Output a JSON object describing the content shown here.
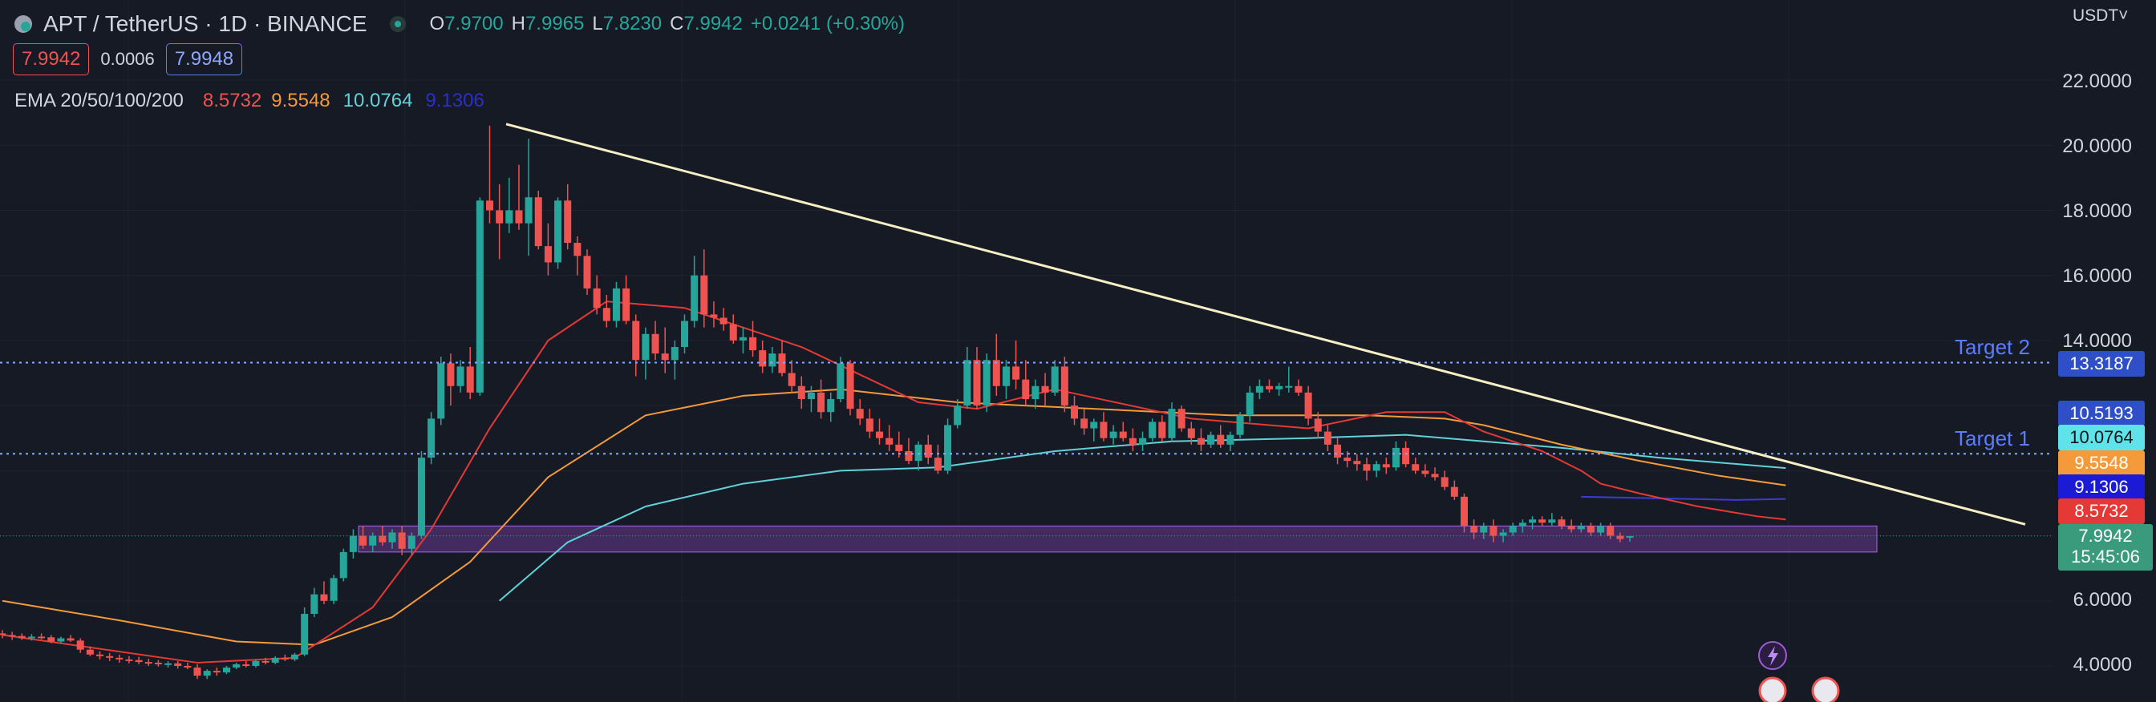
{
  "header": {
    "symbol": "APT / TetherUS · 1D · BINANCE",
    "o_label": "O",
    "o": "7.9700",
    "h_label": "H",
    "h": "7.9965",
    "l_label": "L",
    "l": "7.8230",
    "c_label": "C",
    "c": "7.9942",
    "change": "+0.0241 (+0.30%)"
  },
  "prices": {
    "sell": "7.9942",
    "spread": "0.0006",
    "buy": "7.9948"
  },
  "ema": {
    "label": "EMA 20/50/100/200",
    "ema20": "8.5732",
    "ema50": "9.5548",
    "ema100": "10.0764",
    "ema200": "9.1306"
  },
  "axis": {
    "currency": "USDT",
    "ticks": [
      "22.0000",
      "20.0000",
      "18.0000",
      "16.0000",
      "14.0000",
      "6.0000",
      "4.0000"
    ]
  },
  "price_tags": {
    "target2_level": "13.3187",
    "extra_level": "10.5193",
    "ema100": "10.0764",
    "ema50": "9.5548",
    "ema200": "9.1306",
    "ema20": "8.5732",
    "last": "7.9942",
    "countdown": "15:45:06"
  },
  "targets": {
    "target2": "Target 2",
    "target1": "Target 1"
  },
  "colors": {
    "background": "#161a25",
    "up": "#26a69a",
    "down": "#ef5350",
    "ema20": "#e53935",
    "ema50": "#f59a3b",
    "ema100": "#5fd3d8",
    "ema200": "#3b3bd6",
    "trendline": "#f5efc3",
    "target_line": "#8fa6ff",
    "zone": "#7b3fa8"
  },
  "chart_data": {
    "type": "candlestick",
    "ylim": [
      3.4,
      23.2
    ],
    "grid": true,
    "candles": [
      [
        5.0,
        5.1,
        4.85,
        4.95
      ],
      [
        4.95,
        5.05,
        4.8,
        4.92
      ],
      [
        4.92,
        5.0,
        4.8,
        4.85
      ],
      [
        4.85,
        4.98,
        4.78,
        4.9
      ],
      [
        4.9,
        5.0,
        4.82,
        4.88
      ],
      [
        4.88,
        4.95,
        4.7,
        4.75
      ],
      [
        4.75,
        4.9,
        4.7,
        4.85
      ],
      [
        4.85,
        4.95,
        4.74,
        4.78
      ],
      [
        4.78,
        4.85,
        4.4,
        4.5
      ],
      [
        4.5,
        4.6,
        4.3,
        4.35
      ],
      [
        4.35,
        4.45,
        4.2,
        4.3
      ],
      [
        4.3,
        4.4,
        4.15,
        4.25
      ],
      [
        4.25,
        4.35,
        4.1,
        4.2
      ],
      [
        4.2,
        4.3,
        4.08,
        4.18
      ],
      [
        4.18,
        4.28,
        4.05,
        4.12
      ],
      [
        4.12,
        4.22,
        4.0,
        4.1
      ],
      [
        4.1,
        4.18,
        3.98,
        4.05
      ],
      [
        4.05,
        4.15,
        3.95,
        4.08
      ],
      [
        4.08,
        4.15,
        3.92,
        4.0
      ],
      [
        4.0,
        4.1,
        3.9,
        3.95
      ],
      [
        3.95,
        4.05,
        3.6,
        3.7
      ],
      [
        3.7,
        3.9,
        3.6,
        3.85
      ],
      [
        3.85,
        3.95,
        3.7,
        3.8
      ],
      [
        3.8,
        4.0,
        3.75,
        3.95
      ],
      [
        3.95,
        4.1,
        3.9,
        4.05
      ],
      [
        4.05,
        4.15,
        3.95,
        4.0
      ],
      [
        4.0,
        4.2,
        3.95,
        4.15
      ],
      [
        4.15,
        4.25,
        4.05,
        4.1
      ],
      [
        4.1,
        4.3,
        4.05,
        4.25
      ],
      [
        4.25,
        4.35,
        4.15,
        4.2
      ],
      [
        4.2,
        4.4,
        4.15,
        4.35
      ],
      [
        4.35,
        5.8,
        4.3,
        5.6
      ],
      [
        5.6,
        6.4,
        5.5,
        6.2
      ],
      [
        6.2,
        6.6,
        5.9,
        6.0
      ],
      [
        6.0,
        6.8,
        5.9,
        6.7
      ],
      [
        6.7,
        7.6,
        6.6,
        7.5
      ],
      [
        7.5,
        8.2,
        7.3,
        8.0
      ],
      [
        8.0,
        8.3,
        7.6,
        7.7
      ],
      [
        7.7,
        8.1,
        7.5,
        8.0
      ],
      [
        8.0,
        8.3,
        7.7,
        7.8
      ],
      [
        7.8,
        8.2,
        7.6,
        8.1
      ],
      [
        8.1,
        8.3,
        7.4,
        7.6
      ],
      [
        7.6,
        8.1,
        7.4,
        8.0
      ],
      [
        8.0,
        10.6,
        7.9,
        10.4
      ],
      [
        10.4,
        11.8,
        10.2,
        11.6
      ],
      [
        11.6,
        13.5,
        11.4,
        13.3
      ],
      [
        13.3,
        13.6,
        12.0,
        12.6
      ],
      [
        12.6,
        13.4,
        12.4,
        13.2
      ],
      [
        13.2,
        13.8,
        12.2,
        12.4
      ],
      [
        12.4,
        18.4,
        12.3,
        18.3
      ],
      [
        18.3,
        20.6,
        17.6,
        18.0
      ],
      [
        18.0,
        18.8,
        16.5,
        17.6
      ],
      [
        17.6,
        19.0,
        17.3,
        18.0
      ],
      [
        18.0,
        19.4,
        17.4,
        17.6
      ],
      [
        17.6,
        20.2,
        16.6,
        18.4
      ],
      [
        18.4,
        18.6,
        16.8,
        16.9
      ],
      [
        16.9,
        17.6,
        16.0,
        16.4
      ],
      [
        16.4,
        18.4,
        16.2,
        18.3
      ],
      [
        18.3,
        18.8,
        16.8,
        17.0
      ],
      [
        17.0,
        17.2,
        16.0,
        16.6
      ],
      [
        16.6,
        16.8,
        15.4,
        15.6
      ],
      [
        15.6,
        16.0,
        14.8,
        15.0
      ],
      [
        15.0,
        15.4,
        14.4,
        14.6
      ],
      [
        14.6,
        15.8,
        14.4,
        15.6
      ],
      [
        15.6,
        16.0,
        14.5,
        14.6
      ],
      [
        14.6,
        14.8,
        12.9,
        13.4
      ],
      [
        13.4,
        14.4,
        12.8,
        14.2
      ],
      [
        14.2,
        14.6,
        13.4,
        13.6
      ],
      [
        13.6,
        14.4,
        13.0,
        13.4
      ],
      [
        13.4,
        14.0,
        12.8,
        13.8
      ],
      [
        13.8,
        14.8,
        13.6,
        14.6
      ],
      [
        14.6,
        16.6,
        14.4,
        16.0
      ],
      [
        16.0,
        16.8,
        14.4,
        14.8
      ],
      [
        14.8,
        15.2,
        14.4,
        14.7
      ],
      [
        14.7,
        15.0,
        14.3,
        14.5
      ],
      [
        14.5,
        14.8,
        13.9,
        14.0
      ],
      [
        14.0,
        14.4,
        13.6,
        14.1
      ],
      [
        14.1,
        14.6,
        13.5,
        13.7
      ],
      [
        13.7,
        14.0,
        13.0,
        13.2
      ],
      [
        13.2,
        13.8,
        13.0,
        13.6
      ],
      [
        13.6,
        14.0,
        12.9,
        13.0
      ],
      [
        13.0,
        13.4,
        12.4,
        12.6
      ],
      [
        12.6,
        12.9,
        11.9,
        12.2
      ],
      [
        12.2,
        12.6,
        11.8,
        12.4
      ],
      [
        12.4,
        12.8,
        11.6,
        11.8
      ],
      [
        11.8,
        12.4,
        11.5,
        12.2
      ],
      [
        12.2,
        13.5,
        12.1,
        13.3
      ],
      [
        13.3,
        13.4,
        11.7,
        11.9
      ],
      [
        11.9,
        12.2,
        11.4,
        11.6
      ],
      [
        11.6,
        11.9,
        11.0,
        11.2
      ],
      [
        11.2,
        11.6,
        10.8,
        11.0
      ],
      [
        11.0,
        11.4,
        10.6,
        10.8
      ],
      [
        10.8,
        11.2,
        10.4,
        10.6
      ],
      [
        10.6,
        11.0,
        10.2,
        10.3
      ],
      [
        10.3,
        10.9,
        10.0,
        10.8
      ],
      [
        10.8,
        11.1,
        10.2,
        10.4
      ],
      [
        10.4,
        10.8,
        9.9,
        10.0
      ],
      [
        10.0,
        11.6,
        9.9,
        11.4
      ],
      [
        11.4,
        12.2,
        11.3,
        12.0
      ],
      [
        12.0,
        13.8,
        11.9,
        13.4
      ],
      [
        13.4,
        13.8,
        11.9,
        12.0
      ],
      [
        12.0,
        13.6,
        11.8,
        13.4
      ],
      [
        13.4,
        14.2,
        12.3,
        12.6
      ],
      [
        12.6,
        13.4,
        12.2,
        13.2
      ],
      [
        13.2,
        14.0,
        12.5,
        12.8
      ],
      [
        12.8,
        13.4,
        12.0,
        12.2
      ],
      [
        12.2,
        12.8,
        11.9,
        12.6
      ],
      [
        12.6,
        13.0,
        12.0,
        12.4
      ],
      [
        12.4,
        13.4,
        12.3,
        13.2
      ],
      [
        13.2,
        13.5,
        11.8,
        12.0
      ],
      [
        12.0,
        12.3,
        11.4,
        11.6
      ],
      [
        11.6,
        11.9,
        11.1,
        11.3
      ],
      [
        11.3,
        11.6,
        10.9,
        11.5
      ],
      [
        11.5,
        11.8,
        10.9,
        11.0
      ],
      [
        11.0,
        11.4,
        10.8,
        11.2
      ],
      [
        11.2,
        11.5,
        10.9,
        11.0
      ],
      [
        11.0,
        11.3,
        10.6,
        10.8
      ],
      [
        10.8,
        11.2,
        10.6,
        11.0
      ],
      [
        11.0,
        11.6,
        10.9,
        11.5
      ],
      [
        11.5,
        11.7,
        10.9,
        11.0
      ],
      [
        11.0,
        12.1,
        10.9,
        11.9
      ],
      [
        11.9,
        12.0,
        11.2,
        11.3
      ],
      [
        11.3,
        11.5,
        10.8,
        11.0
      ],
      [
        11.0,
        11.3,
        10.6,
        10.8
      ],
      [
        10.8,
        11.2,
        10.7,
        11.1
      ],
      [
        11.1,
        11.4,
        10.7,
        10.8
      ],
      [
        10.8,
        11.2,
        10.6,
        11.1
      ],
      [
        11.1,
        11.8,
        11.0,
        11.7
      ],
      [
        11.7,
        12.6,
        11.5,
        12.4
      ],
      [
        12.4,
        12.8,
        12.2,
        12.6
      ],
      [
        12.6,
        12.8,
        12.4,
        12.5
      ],
      [
        12.5,
        12.7,
        12.3,
        12.6
      ],
      [
        12.6,
        13.2,
        12.4,
        12.6
      ],
      [
        12.6,
        12.8,
        12.3,
        12.4
      ],
      [
        12.4,
        12.6,
        11.4,
        11.6
      ],
      [
        11.6,
        11.8,
        11.0,
        11.2
      ],
      [
        11.2,
        11.4,
        10.6,
        10.8
      ],
      [
        10.8,
        11.0,
        10.2,
        10.4
      ],
      [
        10.4,
        10.6,
        10.1,
        10.3
      ],
      [
        10.3,
        10.5,
        10.0,
        10.2
      ],
      [
        10.2,
        10.4,
        9.7,
        10.0
      ],
      [
        10.0,
        10.3,
        9.8,
        10.2
      ],
      [
        10.2,
        10.4,
        9.9,
        10.1
      ],
      [
        10.1,
        10.9,
        10.0,
        10.7
      ],
      [
        10.7,
        10.9,
        10.1,
        10.2
      ],
      [
        10.2,
        10.4,
        9.9,
        10.0
      ],
      [
        10.0,
        10.2,
        9.8,
        9.9
      ],
      [
        9.9,
        10.1,
        9.7,
        9.8
      ],
      [
        9.8,
        10.0,
        9.4,
        9.5
      ],
      [
        9.5,
        9.7,
        9.1,
        9.2
      ],
      [
        9.2,
        9.3,
        8.1,
        8.3
      ],
      [
        8.3,
        8.5,
        7.9,
        8.1
      ],
      [
        8.1,
        8.4,
        7.9,
        8.3
      ],
      [
        8.3,
        8.5,
        7.8,
        8.0
      ],
      [
        8.0,
        8.2,
        7.8,
        8.1
      ],
      [
        8.1,
        8.4,
        8.0,
        8.3
      ],
      [
        8.3,
        8.5,
        8.1,
        8.4
      ],
      [
        8.4,
        8.6,
        8.2,
        8.5
      ],
      [
        8.5,
        8.6,
        8.3,
        8.4
      ],
      [
        8.4,
        8.7,
        8.3,
        8.5
      ],
      [
        8.5,
        8.6,
        8.2,
        8.3
      ],
      [
        8.3,
        8.5,
        8.1,
        8.2
      ],
      [
        8.2,
        8.4,
        8.1,
        8.3
      ],
      [
        8.3,
        8.4,
        8.0,
        8.1
      ],
      [
        8.1,
        8.4,
        8.0,
        8.3
      ],
      [
        8.3,
        8.4,
        7.9,
        8.0
      ],
      [
        8.0,
        8.1,
        7.8,
        7.9
      ],
      [
        7.97,
        8.0,
        7.82,
        7.99
      ]
    ],
    "ema20": [
      [
        0,
        4.95
      ],
      [
        20,
        4.1
      ],
      [
        30,
        4.25
      ],
      [
        38,
        5.8
      ],
      [
        44,
        8.2
      ],
      [
        50,
        11.3
      ],
      [
        56,
        14.0
      ],
      [
        62,
        15.2
      ],
      [
        70,
        15.0
      ],
      [
        82,
        13.8
      ],
      [
        94,
        12.1
      ],
      [
        100,
        11.9
      ],
      [
        108,
        12.5
      ],
      [
        122,
        11.6
      ],
      [
        134,
        11.3
      ],
      [
        142,
        11.8
      ],
      [
        148,
        11.8
      ],
      [
        152,
        11.2
      ],
      [
        158,
        10.6
      ],
      [
        162,
        10.0
      ],
      [
        164,
        9.6
      ],
      [
        168,
        9.3
      ],
      [
        174,
        8.9
      ],
      [
        180,
        8.6
      ],
      [
        183,
        8.5
      ]
    ],
    "ema50": [
      [
        0,
        6.0
      ],
      [
        12,
        5.4
      ],
      [
        24,
        4.75
      ],
      [
        32,
        4.65
      ],
      [
        40,
        5.5
      ],
      [
        48,
        7.2
      ],
      [
        56,
        9.8
      ],
      [
        66,
        11.7
      ],
      [
        76,
        12.3
      ],
      [
        86,
        12.5
      ],
      [
        98,
        12.1
      ],
      [
        112,
        11.9
      ],
      [
        126,
        11.7
      ],
      [
        140,
        11.7
      ],
      [
        148,
        11.6
      ],
      [
        152,
        11.4
      ],
      [
        160,
        10.8
      ],
      [
        168,
        10.3
      ],
      [
        176,
        9.85
      ],
      [
        183,
        9.55
      ]
    ],
    "ema100": [
      [
        51,
        6.0
      ],
      [
        58,
        7.8
      ],
      [
        66,
        8.9
      ],
      [
        76,
        9.6
      ],
      [
        86,
        10.0
      ],
      [
        96,
        10.1
      ],
      [
        108,
        10.6
      ],
      [
        120,
        10.9
      ],
      [
        134,
        11.0
      ],
      [
        144,
        11.1
      ],
      [
        152,
        10.9
      ],
      [
        160,
        10.7
      ],
      [
        170,
        10.4
      ],
      [
        183,
        10.08
      ]
    ],
    "ema200": [
      [
        162,
        9.2
      ],
      [
        170,
        9.15
      ],
      [
        178,
        9.1
      ],
      [
        183,
        9.13
      ]
    ],
    "trendline": [
      [
        51,
        20.65
      ],
      [
        209,
        8.35
      ]
    ],
    "target_levels": [
      13.3187,
      10.5193
    ],
    "support_zone": [
      7.5,
      8.3
    ]
  }
}
